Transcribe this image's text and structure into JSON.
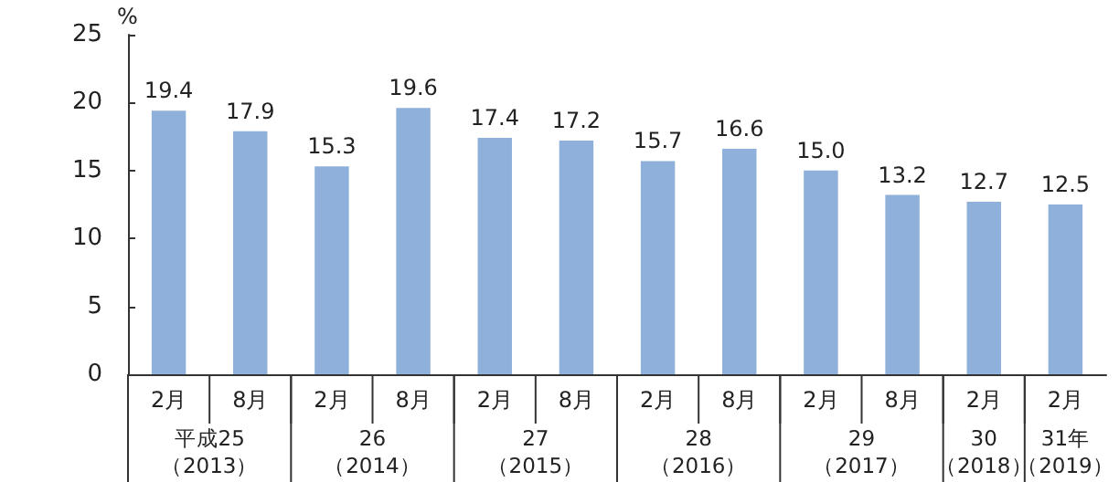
{
  "chart_data": {
    "type": "bar",
    "ylabel": "%",
    "categories": [
      "2月",
      "8月",
      "2月",
      "8月",
      "2月",
      "8月",
      "2月",
      "8月",
      "2月",
      "8月",
      "2月",
      "2月"
    ],
    "values": [
      19.4,
      17.9,
      15.3,
      19.6,
      17.4,
      17.2,
      15.7,
      16.6,
      15.0,
      13.2,
      12.7,
      12.5
    ],
    "value_labels": [
      "19.4",
      "17.9",
      "15.3",
      "19.6",
      "17.4",
      "17.2",
      "15.7",
      "16.6",
      "15.0",
      "13.2",
      "12.7",
      "12.5"
    ],
    "color": "#8eb0da",
    "ylim": [
      0,
      25
    ],
    "yticks": [
      0,
      5,
      10,
      15,
      20,
      25
    ],
    "grid": false,
    "annotations": [
      "平成25",
      "（2013）",
      "26",
      "（2014）",
      "27",
      "（2015）",
      "28",
      "（2016）",
      "29",
      "（2017）",
      "30",
      "（2018）",
      "31年",
      "（2019）"
    ]
  }
}
